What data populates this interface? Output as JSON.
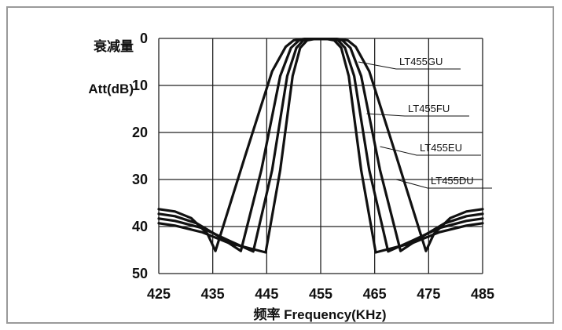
{
  "chart_data": {
    "type": "line",
    "xlabel": "频率 Frequency(KHz)",
    "ylabel_top": "衰减量",
    "ylabel_bottom": "Att(dB)",
    "xlim": [
      425,
      485
    ],
    "ylim": [
      0,
      50
    ],
    "y_inverted": true,
    "grid": true,
    "x_ticks": [
      "425",
      "435",
      "445",
      "455",
      "465",
      "475",
      "485"
    ],
    "y_ticks": [
      "0",
      "10",
      "20",
      "30",
      "40",
      "50"
    ],
    "series": [
      {
        "name": "LT455GU",
        "points": [
          [
            425,
            36.3
          ],
          [
            428,
            36.8
          ],
          [
            431,
            38.2
          ],
          [
            434,
            41.5
          ],
          [
            435.5,
            45.2
          ],
          [
            441,
            25
          ],
          [
            446,
            7
          ],
          [
            448.5,
            1.8
          ],
          [
            450,
            0.4
          ],
          [
            452,
            0.1
          ],
          [
            458,
            0.1
          ],
          [
            460,
            0.4
          ],
          [
            461.5,
            1.8
          ],
          [
            464,
            7
          ],
          [
            469,
            25
          ],
          [
            474.5,
            45.2
          ],
          [
            476,
            41.5
          ],
          [
            479,
            38.2
          ],
          [
            482,
            36.8
          ],
          [
            485,
            36.3
          ]
        ]
      },
      {
        "name": "LT455FU",
        "points": [
          [
            425,
            37.3
          ],
          [
            428,
            37.8
          ],
          [
            432,
            39.3
          ],
          [
            436,
            42
          ],
          [
            440.2,
            45.2
          ],
          [
            444,
            28
          ],
          [
            447.5,
            8
          ],
          [
            449.5,
            2
          ],
          [
            451,
            0.4
          ],
          [
            453,
            0.1
          ],
          [
            457,
            0.1
          ],
          [
            459,
            0.4
          ],
          [
            460.5,
            2
          ],
          [
            462.5,
            8
          ],
          [
            466,
            28
          ],
          [
            469.8,
            45.2
          ],
          [
            474,
            42
          ],
          [
            478,
            39.3
          ],
          [
            482,
            37.8
          ],
          [
            485,
            37.3
          ]
        ]
      },
      {
        "name": "LT455EU",
        "points": [
          [
            425,
            38.3
          ],
          [
            428,
            38.8
          ],
          [
            433,
            40.3
          ],
          [
            438,
            43
          ],
          [
            442.5,
            45.3
          ],
          [
            446,
            28
          ],
          [
            448.8,
            8
          ],
          [
            450.5,
            2
          ],
          [
            451.8,
            0.4
          ],
          [
            453.5,
            0.1
          ],
          [
            456.5,
            0.1
          ],
          [
            458.2,
            0.4
          ],
          [
            459.5,
            2
          ],
          [
            461.2,
            8
          ],
          [
            464,
            28
          ],
          [
            467.5,
            45.3
          ],
          [
            472,
            43
          ],
          [
            477,
            40.3
          ],
          [
            482,
            38.8
          ],
          [
            485,
            38.3
          ]
        ]
      },
      {
        "name": "LT455DU",
        "points": [
          [
            425,
            39.3
          ],
          [
            428,
            39.8
          ],
          [
            433,
            41.2
          ],
          [
            438,
            43.5
          ],
          [
            444.8,
            45.5
          ],
          [
            447.5,
            28
          ],
          [
            449.8,
            8
          ],
          [
            451.2,
            2
          ],
          [
            452.5,
            0.4
          ],
          [
            454,
            0.1
          ],
          [
            456,
            0.1
          ],
          [
            457.5,
            0.4
          ],
          [
            458.8,
            2
          ],
          [
            460.2,
            8
          ],
          [
            462.5,
            28
          ],
          [
            465.2,
            45.5
          ],
          [
            472,
            43.5
          ],
          [
            477,
            41.2
          ],
          [
            482,
            39.8
          ],
          [
            485,
            39.3
          ]
        ]
      }
    ],
    "legend": [
      {
        "label": "LT455GU",
        "pointer_x": 462,
        "pointer_y": 5
      },
      {
        "label": "LT455FU",
        "pointer_x": 463.5,
        "pointer_y": 16
      },
      {
        "label": "LT455EU",
        "pointer_x": 466,
        "pointer_y": 23
      },
      {
        "label": "LT455DU",
        "pointer_x": 469,
        "pointer_y": 30
      }
    ]
  }
}
